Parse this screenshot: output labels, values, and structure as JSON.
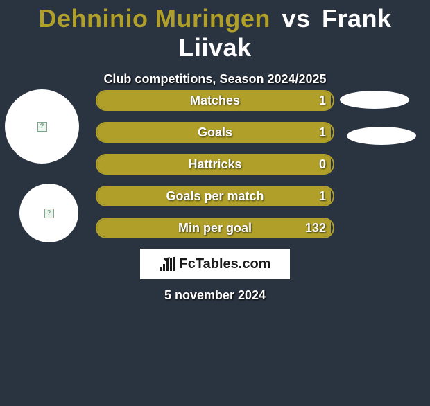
{
  "header": {
    "player1": "Dehninio Muringen",
    "vs": "vs",
    "player2": "Frank Liivak",
    "subtitle": "Club competitions, Season 2024/2025"
  },
  "colors": {
    "background": "#2a3340",
    "accent": "#b0a029",
    "white": "#ffffff"
  },
  "stats": [
    {
      "label": "Matches",
      "value": "1",
      "fill_pct": 99
    },
    {
      "label": "Goals",
      "value": "1",
      "fill_pct": 99
    },
    {
      "label": "Hattricks",
      "value": "0",
      "fill_pct": 99
    },
    {
      "label": "Goals per match",
      "value": "1",
      "fill_pct": 99
    },
    {
      "label": "Min per goal",
      "value": "132",
      "fill_pct": 99
    }
  ],
  "pills_count": 2,
  "logo_text": "FcTables.com",
  "date": "5 november 2024"
}
